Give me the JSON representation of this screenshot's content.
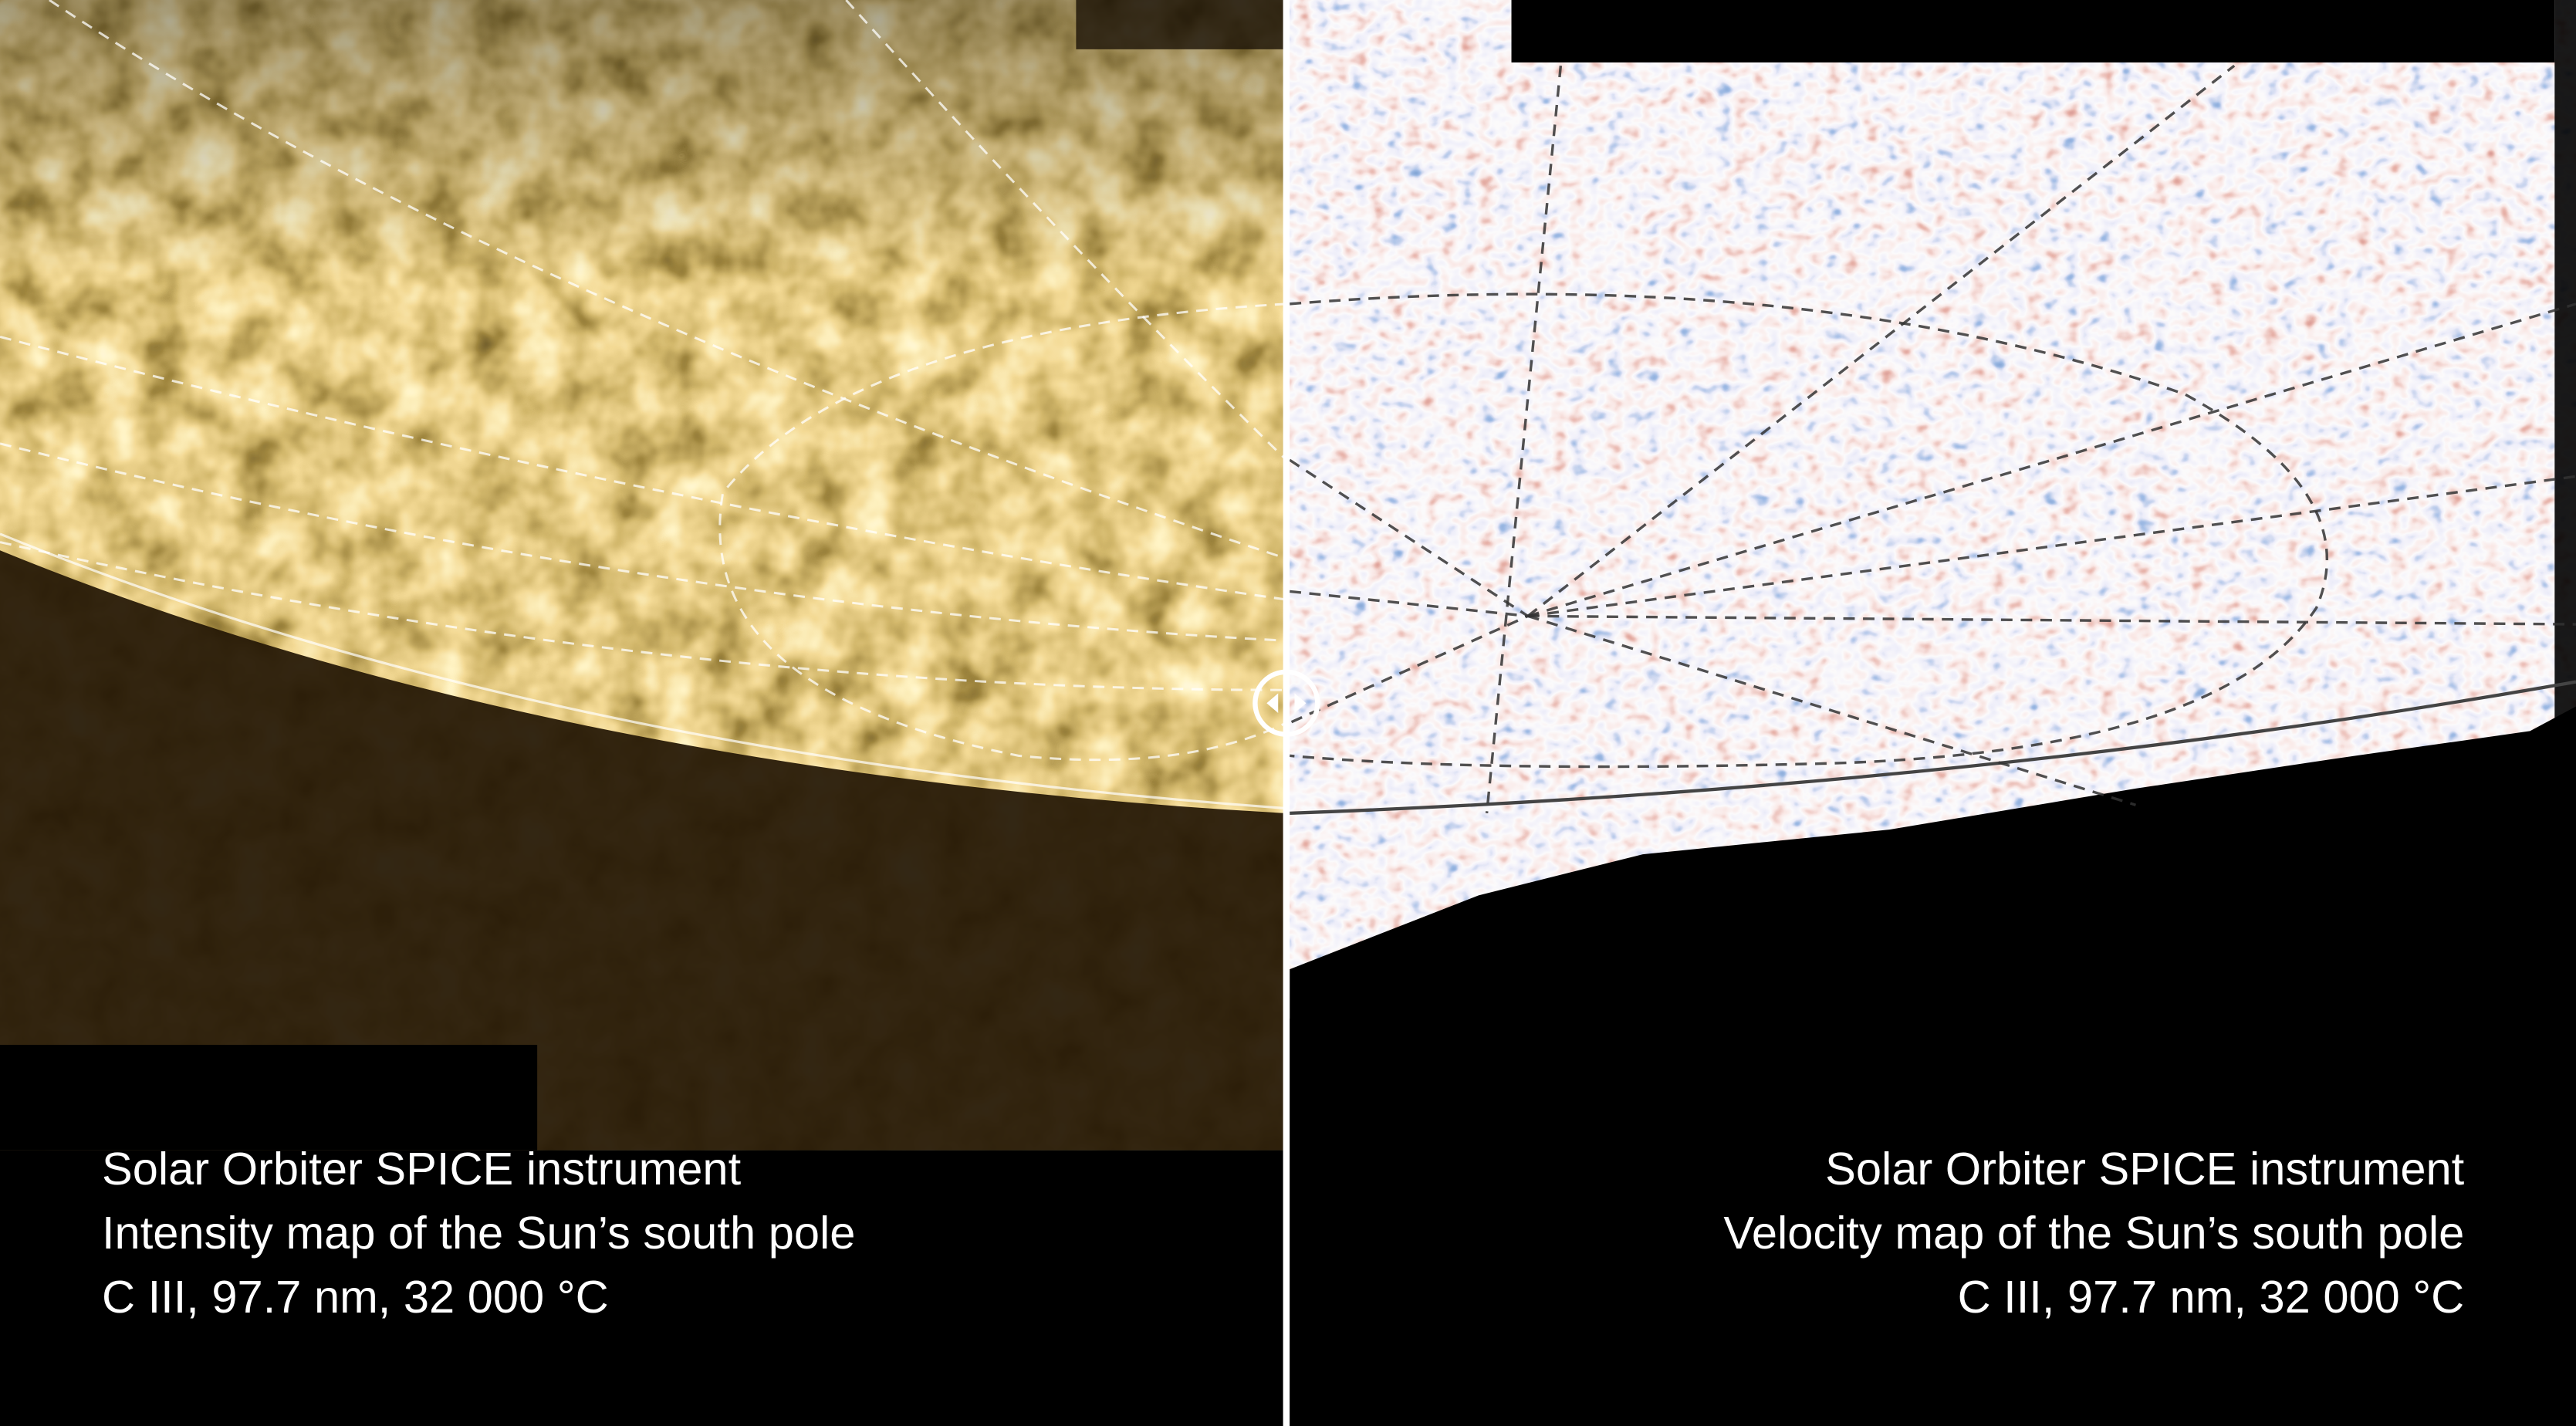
{
  "left_caption": {
    "lines": [
      "Solar Orbiter SPICE instrument",
      "Intensity map of the Sun’s south pole",
      "C III, 97.7 nm, 32 000 °C"
    ]
  },
  "right_caption": {
    "lines": [
      "Solar Orbiter SPICE instrument",
      "Velocity map of the Sun’s south pole",
      "C III, 97.7 nm, 32 000 °C"
    ]
  }
}
